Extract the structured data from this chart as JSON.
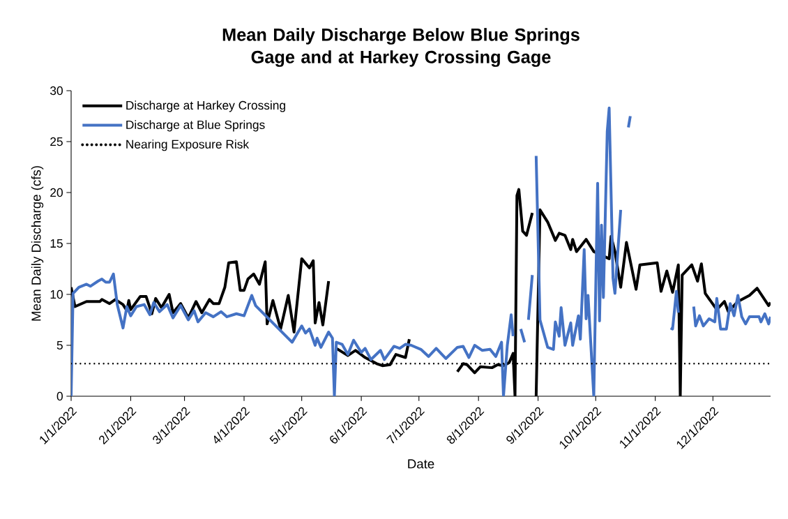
{
  "chart_data": {
    "type": "line",
    "title": "Mean Daily Discharge Below Blue Springs Gage and at Harkey Crossing Gage",
    "xlabel": "Date",
    "ylabel": "Mean Daily Discharge (cfs)",
    "xlim": [
      "2022-01-01",
      "2022-12-31"
    ],
    "ylim": [
      0,
      30
    ],
    "yticks": [
      0,
      5,
      10,
      15,
      20,
      25,
      30
    ],
    "xticks": [
      {
        "value": "2022-01-01",
        "label": "1/1/2022"
      },
      {
        "value": "2022-02-01",
        "label": "2/1/2022"
      },
      {
        "value": "2022-03-01",
        "label": "3/1/2022"
      },
      {
        "value": "2022-04-01",
        "label": "4/1/2022"
      },
      {
        "value": "2022-05-01",
        "label": "5/1/2022"
      },
      {
        "value": "2022-06-01",
        "label": "6/1/2022"
      },
      {
        "value": "2022-07-01",
        "label": "7/1/2022"
      },
      {
        "value": "2022-08-01",
        "label": "8/1/2022"
      },
      {
        "value": "2022-09-01",
        "label": "9/1/2022"
      },
      {
        "value": "2022-10-01",
        "label": "10/1/2022"
      },
      {
        "value": "2022-11-01",
        "label": "11/1/2022"
      },
      {
        "value": "2022-12-01",
        "label": "12/1/2022"
      }
    ],
    "grid": false,
    "legend": "top left",
    "line_style": "solid",
    "ref_lines": [
      {
        "axis": "y",
        "value": 3.2,
        "label": "Nearing Exposure Risk",
        "color": "#000000",
        "line_style": "dotted"
      }
    ],
    "series": [
      {
        "name": "Discharge at Harkey Crossing",
        "color": "#000000",
        "x": [
          "2022-01-01",
          "2022-01-03",
          "2022-01-09",
          "2022-01-16",
          "2022-01-17",
          "2022-01-21",
          "2022-01-24",
          "2022-01-28",
          "2022-01-30",
          "2022-01-31",
          "2022-02-01",
          "2022-02-06",
          "2022-02-09",
          "2022-02-12",
          "2022-02-14",
          "2022-02-17",
          "2022-02-21",
          "2022-02-23",
          "2022-02-27",
          "2022-03-03",
          "2022-03-07",
          "2022-03-10",
          "2022-03-14",
          "2022-03-16",
          "2022-03-19",
          "2022-03-22",
          "2022-03-24",
          "2022-03-28",
          "2022-03-30",
          "2022-04-01",
          "2022-04-03",
          "2022-04-06",
          "2022-04-09",
          "2022-04-12",
          "2022-04-13",
          "2022-04-16",
          "2022-04-20",
          "2022-04-24",
          "2022-04-27",
          "2022-05-01",
          "2022-05-05",
          "2022-05-07",
          "2022-05-08",
          "2022-05-10",
          "2022-05-12",
          "2022-05-15",
          "2022-05-17",
          "2022-05-19",
          "2022-05-25",
          "2022-05-29",
          "2022-06-03",
          "2022-06-09",
          "2022-06-12",
          "2022-06-16",
          "2022-06-19",
          "2022-06-24",
          "2022-06-26",
          "2022-07-01",
          "2022-07-21",
          "2022-07-24",
          "2022-07-26",
          "2022-07-30",
          "2022-08-02",
          "2022-08-08",
          "2022-08-11",
          "2022-08-14",
          "2022-08-17",
          "2022-08-19",
          "2022-08-20",
          "2022-08-21",
          "2022-08-22",
          "2022-08-24",
          "2022-08-26",
          "2022-08-29",
          "2022-08-30",
          "2022-08-31",
          "2022-09-02",
          "2022-09-06",
          "2022-09-10",
          "2022-09-12",
          "2022-09-15",
          "2022-09-18",
          "2022-09-19",
          "2022-09-21",
          "2022-09-26",
          "2022-09-30",
          "2022-10-08",
          "2022-10-09",
          "2022-10-11",
          "2022-10-14",
          "2022-10-17",
          "2022-10-22",
          "2022-10-24",
          "2022-11-02",
          "2022-11-04",
          "2022-11-07",
          "2022-11-10",
          "2022-11-13",
          "2022-11-14",
          "2022-11-15",
          "2022-11-20",
          "2022-11-23",
          "2022-11-25",
          "2022-11-27",
          "2022-12-03",
          "2022-12-07",
          "2022-12-09",
          "2022-12-14",
          "2022-12-20",
          "2022-12-24",
          "2022-12-30",
          "2022-12-31"
        ],
        "values": [
          10.7,
          8.8,
          9.3,
          9.3,
          9.5,
          9.1,
          9.5,
          9.0,
          8.4,
          9.4,
          8.5,
          9.8,
          9.8,
          8.1,
          9.6,
          8.7,
          10.0,
          8.2,
          9.1,
          7.7,
          9.3,
          8.2,
          9.5,
          9.1,
          9.1,
          10.7,
          13.1,
          13.2,
          10.4,
          10.4,
          11.5,
          12.0,
          11.0,
          13.2,
          7.1,
          9.4,
          6.6,
          9.9,
          6.3,
          13.5,
          12.6,
          13.3,
          7.2,
          9.2,
          7.0,
          11.3,
          null,
          4.7,
          4.0,
          4.5,
          3.8,
          3.2,
          3.0,
          3.1,
          4.1,
          3.8,
          5.6,
          null,
          2.4,
          3.2,
          3.1,
          2.3,
          2.9,
          2.8,
          3.1,
          3.0,
          3.3,
          4.2,
          0.0,
          19.7,
          20.3,
          16.2,
          15.8,
          18.0,
          null,
          0.0,
          18.3,
          17.1,
          15.3,
          16.0,
          15.8,
          14.4,
          15.4,
          14.2,
          15.4,
          14.2,
          13.5,
          15.7,
          14.2,
          10.7,
          15.1,
          10.5,
          12.9,
          13.1,
          10.3,
          12.3,
          10.2,
          12.9,
          0.0,
          11.9,
          12.9,
          11.3,
          13.0,
          10.1,
          8.5,
          9.3,
          8.3,
          9.3,
          9.9,
          10.6,
          8.9,
          9.2
        ]
      },
      {
        "name": "Discharge at Blue Springs",
        "color": "#4472c4",
        "x": [
          "2022-01-01",
          "2022-01-02",
          "2022-01-05",
          "2022-01-09",
          "2022-01-11",
          "2022-01-15",
          "2022-01-17",
          "2022-01-19",
          "2022-01-21",
          "2022-01-23",
          "2022-01-25",
          "2022-01-28",
          "2022-01-30",
          "2022-02-01",
          "2022-02-04",
          "2022-02-08",
          "2022-02-11",
          "2022-02-13",
          "2022-02-16",
          "2022-02-20",
          "2022-02-23",
          "2022-02-27",
          "2022-03-03",
          "2022-03-06",
          "2022-03-08",
          "2022-03-12",
          "2022-03-16",
          "2022-03-20",
          "2022-03-23",
          "2022-03-28",
          "2022-04-01",
          "2022-04-05",
          "2022-04-07",
          "2022-04-26",
          "2022-05-01",
          "2022-05-03",
          "2022-05-05",
          "2022-05-08",
          "2022-05-09",
          "2022-05-11",
          "2022-05-15",
          "2022-05-17",
          "2022-05-18",
          "2022-05-19",
          "2022-05-22",
          "2022-05-25",
          "2022-05-28",
          "2022-06-01",
          "2022-06-03",
          "2022-06-06",
          "2022-06-11",
          "2022-06-13",
          "2022-06-18",
          "2022-06-21",
          "2022-06-24",
          "2022-06-27",
          "2022-07-02",
          "2022-07-06",
          "2022-07-10",
          "2022-07-15",
          "2022-07-21",
          "2022-07-24",
          "2022-07-27",
          "2022-07-30",
          "2022-08-03",
          "2022-08-07",
          "2022-08-10",
          "2022-08-13",
          "2022-08-14",
          "2022-08-16",
          "2022-08-18",
          "2022-08-19",
          "2022-08-21",
          "2022-08-23",
          "2022-08-25",
          "2022-08-26",
          "2022-08-27",
          "2022-08-29",
          "2022-08-30",
          "2022-08-31",
          "2022-09-02",
          "2022-09-06",
          "2022-09-09",
          "2022-09-10",
          "2022-09-12",
          "2022-09-13",
          "2022-09-15",
          "2022-09-18",
          "2022-09-19",
          "2022-09-22",
          "2022-09-23",
          "2022-09-25",
          "2022-09-26",
          "2022-09-27",
          "2022-09-30",
          "2022-10-02",
          "2022-10-03",
          "2022-10-04",
          "2022-10-05",
          "2022-10-07",
          "2022-10-08",
          "2022-10-10",
          "2022-10-11",
          "2022-10-14",
          "2022-10-16",
          "2022-10-18",
          "2022-10-19",
          "2022-10-21",
          "2022-11-09",
          "2022-11-10",
          "2022-11-12",
          "2022-11-13",
          "2022-11-16",
          "2022-11-21",
          "2022-11-22",
          "2022-11-24",
          "2022-11-26",
          "2022-11-29",
          "2022-12-02",
          "2022-12-03",
          "2022-12-05",
          "2022-12-08",
          "2022-12-10",
          "2022-12-12",
          "2022-12-14",
          "2022-12-16",
          "2022-12-18",
          "2022-12-20",
          "2022-12-25",
          "2022-12-26",
          "2022-12-28",
          "2022-12-30",
          "2022-12-31"
        ],
        "values": [
          0.0,
          10.1,
          10.7,
          11.0,
          10.8,
          11.3,
          11.5,
          11.2,
          11.2,
          12.0,
          9.0,
          6.7,
          8.8,
          7.9,
          8.8,
          9.0,
          8.0,
          9.2,
          8.3,
          9.0,
          7.7,
          8.9,
          7.5,
          8.4,
          7.3,
          8.2,
          7.8,
          8.3,
          7.8,
          8.1,
          7.9,
          9.9,
          8.9,
          5.3,
          6.9,
          6.2,
          6.6,
          5.0,
          5.7,
          4.8,
          6.3,
          5.7,
          0.0,
          5.3,
          5.1,
          4.1,
          5.5,
          4.3,
          4.7,
          3.6,
          4.5,
          3.6,
          4.9,
          4.7,
          5.1,
          5.0,
          4.6,
          3.9,
          4.7,
          3.7,
          4.8,
          4.9,
          3.8,
          5.0,
          4.5,
          4.6,
          3.9,
          5.3,
          0.0,
          5.0,
          8.0,
          5.9,
          null,
          6.6,
          5.3,
          null,
          7.5,
          11.9,
          null,
          23.6,
          7.5,
          4.8,
          4.6,
          7.3,
          5.9,
          8.7,
          5.0,
          7.2,
          5.0,
          7.9,
          5.6,
          14.4,
          7.6,
          9.9,
          0.0,
          20.9,
          7.4,
          16.8,
          9.7,
          26.0,
          28.3,
          11.6,
          10.1,
          18.3,
          null,
          26.4,
          27.5,
          null,
          6.7,
          6.6,
          10.3,
          8.2,
          null,
          8.8,
          6.9,
          7.9,
          6.9,
          7.6,
          7.3,
          9.6,
          6.6,
          6.6,
          9.1,
          7.9,
          9.9,
          7.8,
          7.1,
          7.8,
          7.8,
          7.3,
          8.1,
          7.1,
          7.8
        ]
      }
    ]
  }
}
